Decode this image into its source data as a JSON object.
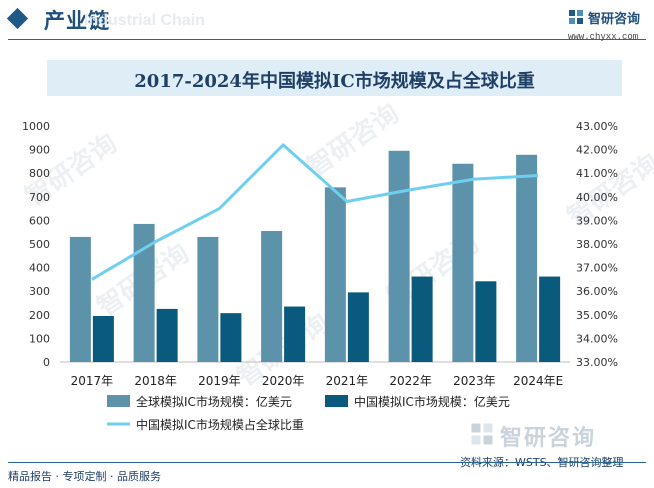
{
  "header": {
    "section_title": "产业链",
    "watermark_text": "Industrial Chain"
  },
  "brand": {
    "name": "智研咨询",
    "url": "www.chyxx.com"
  },
  "watermark": {
    "text": "智研咨询"
  },
  "footer": {
    "tagline": "精品报告 · 专项定制 · 品质服务",
    "source": "资料来源：WSTS、智研咨询整理"
  },
  "colors": {
    "global_bar": "#5c92aa",
    "china_bar": "#095a7c",
    "share_line": "#6ecff0",
    "title_band": "#dfeef6",
    "accent": "#1f5a86"
  },
  "chart_data": {
    "type": "bar",
    "title": "2017-2024年中国模拟IC市场规模及占全球比重",
    "categories": [
      "2017年",
      "2018年",
      "2019年",
      "2020年",
      "2021年",
      "2022年",
      "2023年",
      "2024年E"
    ],
    "series": [
      {
        "name": "全球模拟IC市场规模：亿美元",
        "type": "bar",
        "axis": "left",
        "values": [
          530,
          585,
          530,
          555,
          740,
          895,
          840,
          878
        ]
      },
      {
        "name": "中国模拟IC市场规模：亿美元",
        "type": "bar",
        "axis": "left",
        "values": [
          195,
          225,
          207,
          235,
          295,
          362,
          342,
          362
        ]
      },
      {
        "name": "中国模拟IC市场规模占全球比重",
        "type": "line",
        "axis": "right",
        "values": [
          36.5,
          38.1,
          39.5,
          42.2,
          39.8,
          40.3,
          40.75,
          40.9
        ]
      }
    ],
    "y_left": {
      "min": 0,
      "max": 1000,
      "step": 100,
      "ticks": [
        "0",
        "100",
        "200",
        "300",
        "400",
        "500",
        "600",
        "700",
        "800",
        "900",
        "1000"
      ]
    },
    "y_right": {
      "min": 33,
      "max": 43,
      "step": 1,
      "ticks": [
        "33.00%",
        "34.00%",
        "35.00%",
        "36.00%",
        "37.00%",
        "38.00%",
        "39.00%",
        "40.00%",
        "41.00%",
        "42.00%",
        "43.00%"
      ]
    },
    "grid": false,
    "legend_position": "bottom"
  }
}
